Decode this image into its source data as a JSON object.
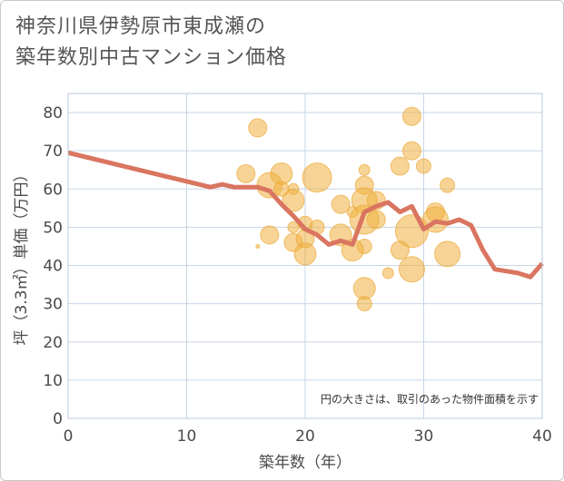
{
  "title_lines": [
    "神奈川県伊勢原市東成瀬の",
    "築年数別中古マンション価格"
  ],
  "chart_data": {
    "type": "scatter",
    "title": "神奈川県伊勢原市東成瀬の築年数別中古マンション価格",
    "xlabel": "築年数（年）",
    "ylabel": "坪（3.3㎡）単価（万円）",
    "xlim": [
      0,
      40
    ],
    "ylim": [
      0,
      85
    ],
    "xticks": [
      0,
      10,
      20,
      30,
      40
    ],
    "yticks": [
      0,
      10,
      20,
      30,
      40,
      50,
      60,
      70,
      80
    ],
    "grid": true,
    "annotation": "円の大きさは、取引のあった物件面積を示す",
    "colors": {
      "bubble": "#f0b040",
      "bubble_edge": "#e9a838",
      "line": "#d97560",
      "grid": "#c7d5e5",
      "frame": "#b8c8dc",
      "plot_bg": "#ffffff"
    },
    "bubbles": [
      {
        "x": 16,
        "y": 76,
        "size": 10
      },
      {
        "x": 29,
        "y": 79,
        "size": 10
      },
      {
        "x": 29,
        "y": 70,
        "size": 10
      },
      {
        "x": 25,
        "y": 65,
        "size": 6
      },
      {
        "x": 28,
        "y": 66,
        "size": 10
      },
      {
        "x": 30,
        "y": 66,
        "size": 8
      },
      {
        "x": 15,
        "y": 64,
        "size": 10
      },
      {
        "x": 18,
        "y": 64,
        "size": 12
      },
      {
        "x": 17,
        "y": 61,
        "size": 14
      },
      {
        "x": 21,
        "y": 63,
        "size": 16
      },
      {
        "x": 18,
        "y": 60,
        "size": 8
      },
      {
        "x": 19,
        "y": 60,
        "size": 6
      },
      {
        "x": 25,
        "y": 61,
        "size": 10
      },
      {
        "x": 32,
        "y": 61,
        "size": 8
      },
      {
        "x": 19,
        "y": 57,
        "size": 12
      },
      {
        "x": 23,
        "y": 56,
        "size": 10
      },
      {
        "x": 25,
        "y": 57,
        "size": 14
      },
      {
        "x": 26,
        "y": 57,
        "size": 10
      },
      {
        "x": 31,
        "y": 54,
        "size": 10
      },
      {
        "x": 24,
        "y": 54,
        "size": 6
      },
      {
        "x": 25,
        "y": 52,
        "size": 16
      },
      {
        "x": 26,
        "y": 52,
        "size": 10
      },
      {
        "x": 31,
        "y": 52,
        "size": 14
      },
      {
        "x": 20,
        "y": 51,
        "size": 8
      },
      {
        "x": 21,
        "y": 50,
        "size": 8
      },
      {
        "x": 19,
        "y": 50,
        "size": 6
      },
      {
        "x": 17,
        "y": 48,
        "size": 10
      },
      {
        "x": 23,
        "y": 48,
        "size": 12
      },
      {
        "x": 19,
        "y": 46,
        "size": 10
      },
      {
        "x": 20,
        "y": 47,
        "size": 10
      },
      {
        "x": 29,
        "y": 49,
        "size": 18
      },
      {
        "x": 25,
        "y": 45,
        "size": 8
      },
      {
        "x": 24,
        "y": 44,
        "size": 12
      },
      {
        "x": 20,
        "y": 43,
        "size": 12
      },
      {
        "x": 28,
        "y": 44,
        "size": 10
      },
      {
        "x": 32,
        "y": 43,
        "size": 14
      },
      {
        "x": 29,
        "y": 39,
        "size": 14
      },
      {
        "x": 27,
        "y": 38,
        "size": 6
      },
      {
        "x": 25,
        "y": 34,
        "size": 12
      },
      {
        "x": 25,
        "y": 30,
        "size": 8
      },
      {
        "x": 16,
        "y": 45,
        "size": 2
      }
    ],
    "line": {
      "x": [
        0,
        12,
        13,
        14,
        16,
        17,
        18,
        19,
        20,
        21,
        22,
        23,
        24,
        25,
        26,
        27,
        28,
        29,
        30,
        31,
        32,
        33,
        34,
        35,
        36,
        37,
        38,
        39,
        40
      ],
      "y": [
        69.5,
        60.5,
        61.2,
        60.5,
        60.5,
        59.5,
        56,
        53,
        49.5,
        48,
        45.5,
        46.5,
        45.5,
        54,
        55.5,
        56.5,
        54,
        55.5,
        49.5,
        51.5,
        51,
        52,
        50.5,
        44,
        39,
        38.5,
        38,
        37,
        40.5
      ]
    }
  }
}
